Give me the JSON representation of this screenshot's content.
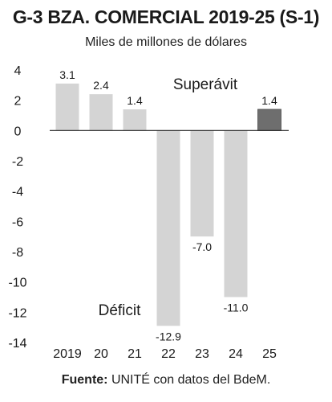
{
  "chart_data": {
    "type": "bar",
    "title": "G-3  BZA. COMERCIAL 2019-25 (S-1)",
    "subtitle": "Miles de millones de dólares",
    "categories": [
      "2019",
      "20",
      "21",
      "22",
      "23",
      "24",
      "25"
    ],
    "values": [
      3.1,
      2.4,
      1.4,
      -12.9,
      -7.0,
      -11.0,
      1.4
    ],
    "value_labels": [
      "3.1",
      "2.4",
      "1.4",
      "-12.9",
      "-7.0",
      "-11.0",
      "1.4"
    ],
    "highlight_index": 6,
    "colors": {
      "bar": "#d4d4d4",
      "highlight": "#6e6e6e",
      "zero_line": "#222222"
    },
    "ylim": [
      -14,
      4
    ],
    "yticks": [
      4,
      2,
      0,
      -2,
      -4,
      -6,
      -8,
      -10,
      -12,
      -14
    ],
    "ytick_labels": [
      "4",
      "2",
      "0",
      "-2",
      "-4",
      "-6",
      "-8",
      "-10",
      "-12",
      "-14"
    ],
    "annotations": {
      "positive": "Superávit",
      "negative": "Déficit"
    },
    "grid": false,
    "legend": "none"
  },
  "source": {
    "label": "Fuente:",
    "text": " UNITÉ con datos del BdeM."
  }
}
